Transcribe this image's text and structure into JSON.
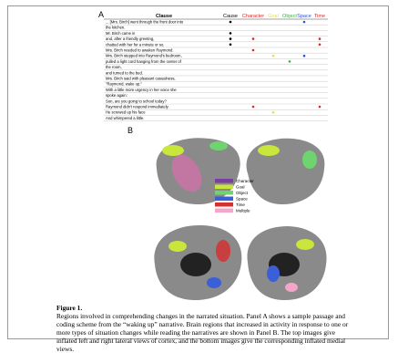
{
  "panel_a": {
    "label": "A",
    "header": {
      "clause": "Clause",
      "columns": [
        "Cause",
        "Character",
        "Goal",
        "Object",
        "Space",
        "Time"
      ]
    },
    "column_colors": [
      "#000000",
      "#d42a2a",
      "#e6e04a",
      "#3cb043",
      "#3050d8",
      "#d42a2a"
    ],
    "rows": [
      {
        "clause": "... [Mrs. Birch] went through the front door into",
        "marks": [
          1,
          0,
          0,
          0,
          1,
          0
        ]
      },
      {
        "clause": "the kitchen.",
        "marks": [
          0,
          0,
          0,
          0,
          0,
          0
        ]
      },
      {
        "clause": "Mr. Birch came in",
        "marks": [
          1,
          0,
          0,
          0,
          0,
          0
        ]
      },
      {
        "clause": "and, after a friendly greeting,",
        "marks": [
          1,
          1,
          0,
          0,
          0,
          1
        ]
      },
      {
        "clause": "chatted with her for a minute or so.",
        "marks": [
          1,
          0,
          0,
          0,
          0,
          1
        ]
      },
      {
        "clause": "Mrs. Birch needed to awaken Raymond.",
        "marks": [
          0,
          1,
          0,
          0,
          0,
          0
        ]
      },
      {
        "clause": "Mrs. Birch stepped into Raymond's bedroom,",
        "marks": [
          0,
          0,
          1,
          0,
          1,
          0
        ]
      },
      {
        "clause": "pulled a light cord hanging from the center of",
        "marks": [
          0,
          0,
          0,
          1,
          0,
          0
        ]
      },
      {
        "clause": "the room,",
        "marks": [
          0,
          0,
          0,
          0,
          0,
          0
        ]
      },
      {
        "clause": "and turned to the bed.",
        "marks": [
          0,
          0,
          0,
          0,
          0,
          0
        ]
      },
      {
        "clause": "Mrs. Birch said with pleasant casualness,",
        "marks": [
          0,
          0,
          0,
          0,
          0,
          0
        ]
      },
      {
        "clause": "\"Raymond, wake up.\"",
        "marks": [
          0,
          0,
          0,
          0,
          0,
          0
        ]
      },
      {
        "clause": "With a little more urgency in her voice she",
        "marks": [
          0,
          0,
          0,
          0,
          0,
          0
        ]
      },
      {
        "clause": "spoke again:",
        "marks": [
          0,
          0,
          0,
          0,
          0,
          0
        ]
      },
      {
        "clause": "Son, are you going to school today?",
        "marks": [
          0,
          0,
          0,
          0,
          0,
          0
        ]
      },
      {
        "clause": "Raymond didn't respond immediately.",
        "marks": [
          0,
          1,
          0,
          0,
          0,
          1
        ]
      },
      {
        "clause": "He screwed up his face",
        "marks": [
          0,
          0,
          1,
          0,
          0,
          0
        ]
      },
      {
        "clause": "And whimpered a little.",
        "marks": [
          0,
          0,
          0,
          0,
          0,
          0
        ]
      }
    ]
  },
  "panel_b": {
    "label": "B",
    "legend": [
      {
        "name": "Character",
        "color": "#7a3e9d"
      },
      {
        "name": "Goal",
        "color": "#c8e63c"
      },
      {
        "name": "Object",
        "color": "#6fd36f"
      },
      {
        "name": "Space",
        "color": "#3a5fd9"
      },
      {
        "name": "Time",
        "color": "#d43030"
      },
      {
        "name": "Multiple",
        "color": "#f4a6c8"
      }
    ]
  },
  "caption": {
    "title": "Figure 1.",
    "text": "Regions involved in comprehending changes in the narrated situation. Panel A shows a sample passage and coding scheme from the “waking up” narrative. Brain regions that increased in activity in response to one or more types of situation changes while reading the narratives are shown in Panel B. The top images give inflated left and right lateral views of cortex, and the bottom images give the corresponding inflated medial views."
  }
}
